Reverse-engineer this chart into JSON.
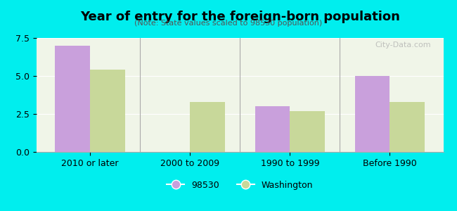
{
  "title": "Year of entry for the foreign-born population",
  "subtitle": "(Note: State values scaled to 98530 population)",
  "categories": [
    "2010 or later",
    "2000 to 2009",
    "1990 to 1999",
    "Before 1990"
  ],
  "values_98530": [
    7.0,
    0.0,
    3.0,
    5.0
  ],
  "values_washington": [
    5.4,
    3.3,
    2.7,
    3.3
  ],
  "color_98530": "#c9a0dc",
  "color_washington": "#c8d89a",
  "ylim": [
    0,
    7.5
  ],
  "yticks": [
    0,
    2.5,
    5,
    7.5
  ],
  "background_color": "#00eeee",
  "plot_bg_color": "#f0f5e8",
  "bar_width": 0.35,
  "legend_label_98530": "98530",
  "legend_label_washington": "Washington",
  "watermark": "City-Data.com"
}
